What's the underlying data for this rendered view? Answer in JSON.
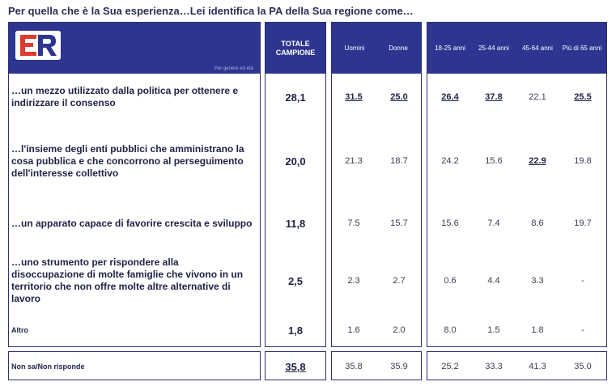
{
  "title": "Per quella che è la Sua esperienza…Lei identifica la PA della Sua regione come…",
  "logo": {
    "subtitle": "Per genere ed età",
    "colors": {
      "red": "#e03a2e",
      "blue": "#2d3590"
    }
  },
  "header": {
    "total": "TOTALE CAMPIONE",
    "gender": [
      "Uomini",
      "Donne"
    ],
    "age": [
      "18-25 anni",
      "25-44 anni",
      "45-64 anni",
      "Più di 65 anni"
    ]
  },
  "chart_data": {
    "type": "table",
    "columns": [
      "TOTALE CAMPIONE",
      "Uomini",
      "Donne",
      "18-25 anni",
      "25-44 anni",
      "45-64 anni",
      "Più di 65 anni"
    ],
    "rows": [
      {
        "label": "…un mezzo utilizzato dalla politica per ottenere e indirizzare il consenso",
        "values": [
          "28,1",
          "31.5",
          "25.0",
          "26.4",
          "37.8",
          "22.1",
          "25.5"
        ],
        "highlight": [
          false,
          true,
          true,
          true,
          true,
          false,
          true
        ]
      },
      {
        "label": "…l'insieme degli enti pubblici che amministrano la cosa pubblica e che concorrono al perseguimento dell'interesse collettivo",
        "values": [
          "20,0",
          "21.3",
          "18.7",
          "24.2",
          "15.6",
          "22.9",
          "19.8"
        ],
        "highlight": [
          false,
          false,
          false,
          false,
          false,
          true,
          false
        ]
      },
      {
        "label": "…un apparato capace di favorire crescita e sviluppo",
        "values": [
          "11,8",
          "7.5",
          "15.7",
          "15.6",
          "7.4",
          "8.6",
          "19.7"
        ],
        "highlight": [
          false,
          false,
          false,
          false,
          false,
          false,
          false
        ]
      },
      {
        "label": "…uno strumento per rispondere alla disoccupazione di molte famiglie che vivono in un territorio che non offre molte altre alternative di lavoro",
        "values": [
          "2,5",
          "2.3",
          "2.7",
          "0.6",
          "4.4",
          "3.3",
          "-"
        ],
        "highlight": [
          false,
          false,
          false,
          false,
          false,
          false,
          false
        ]
      },
      {
        "label": "Altro",
        "values": [
          "1,8",
          "1.6",
          "2.0",
          "8.0",
          "1.5",
          "1.8",
          "-"
        ],
        "highlight": [
          false,
          false,
          false,
          false,
          false,
          false,
          false
        ]
      },
      {
        "label": "Non sa/Non risponde",
        "values": [
          "35,8",
          "35.8",
          "35.9",
          "25.2",
          "33.3",
          "41.3",
          "35.0"
        ],
        "highlight": [
          true,
          false,
          false,
          false,
          false,
          false,
          false
        ]
      }
    ]
  }
}
